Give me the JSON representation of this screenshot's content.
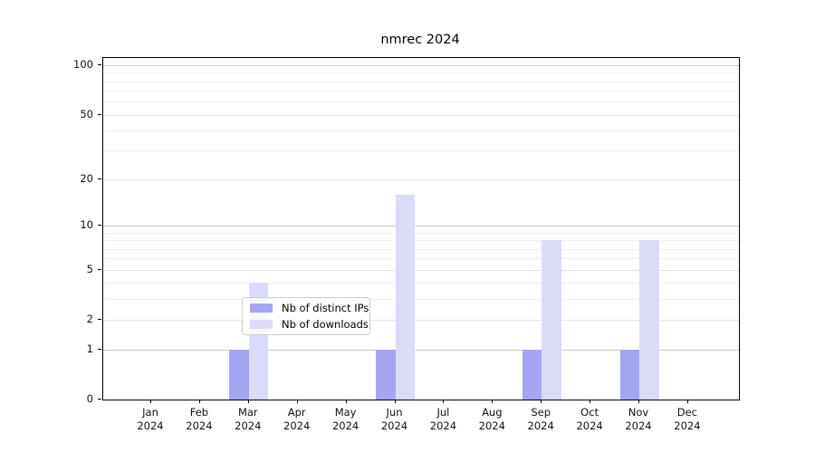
{
  "chart_data": {
    "type": "bar",
    "title": "nmrec 2024",
    "year": "2024",
    "months": [
      "Jan",
      "Feb",
      "Mar",
      "Apr",
      "May",
      "Jun",
      "Jul",
      "Aug",
      "Sep",
      "Oct",
      "Nov",
      "Dec"
    ],
    "series": [
      {
        "name": "Nb of distinct IPs",
        "color": "#a5a5f3",
        "values": [
          0,
          0,
          1,
          0,
          0,
          1,
          0,
          0,
          1,
          0,
          1,
          0
        ]
      },
      {
        "name": "Nb of downloads",
        "color": "#dbdbf9",
        "values": [
          0,
          0,
          4,
          0,
          0,
          16,
          0,
          0,
          8,
          0,
          8,
          0
        ]
      }
    ],
    "yticks": [
      0,
      1,
      2,
      5,
      10,
      20,
      50,
      100
    ],
    "major_gridlines": [
      1,
      10,
      100
    ],
    "labeled_minor_gridlines": [
      2,
      5,
      20,
      50
    ],
    "unlabeled_minor_gridlines": [
      3,
      4,
      6,
      7,
      8,
      9,
      30,
      40,
      60,
      70,
      80,
      90
    ],
    "scale": "log1p",
    "ylim": [
      0,
      116
    ],
    "grid": "horizontal",
    "legend_position": "lower-center",
    "axis_color": "#000000",
    "grid_major_color": "#c9c9c9",
    "grid_minor_color": "#efefef"
  }
}
